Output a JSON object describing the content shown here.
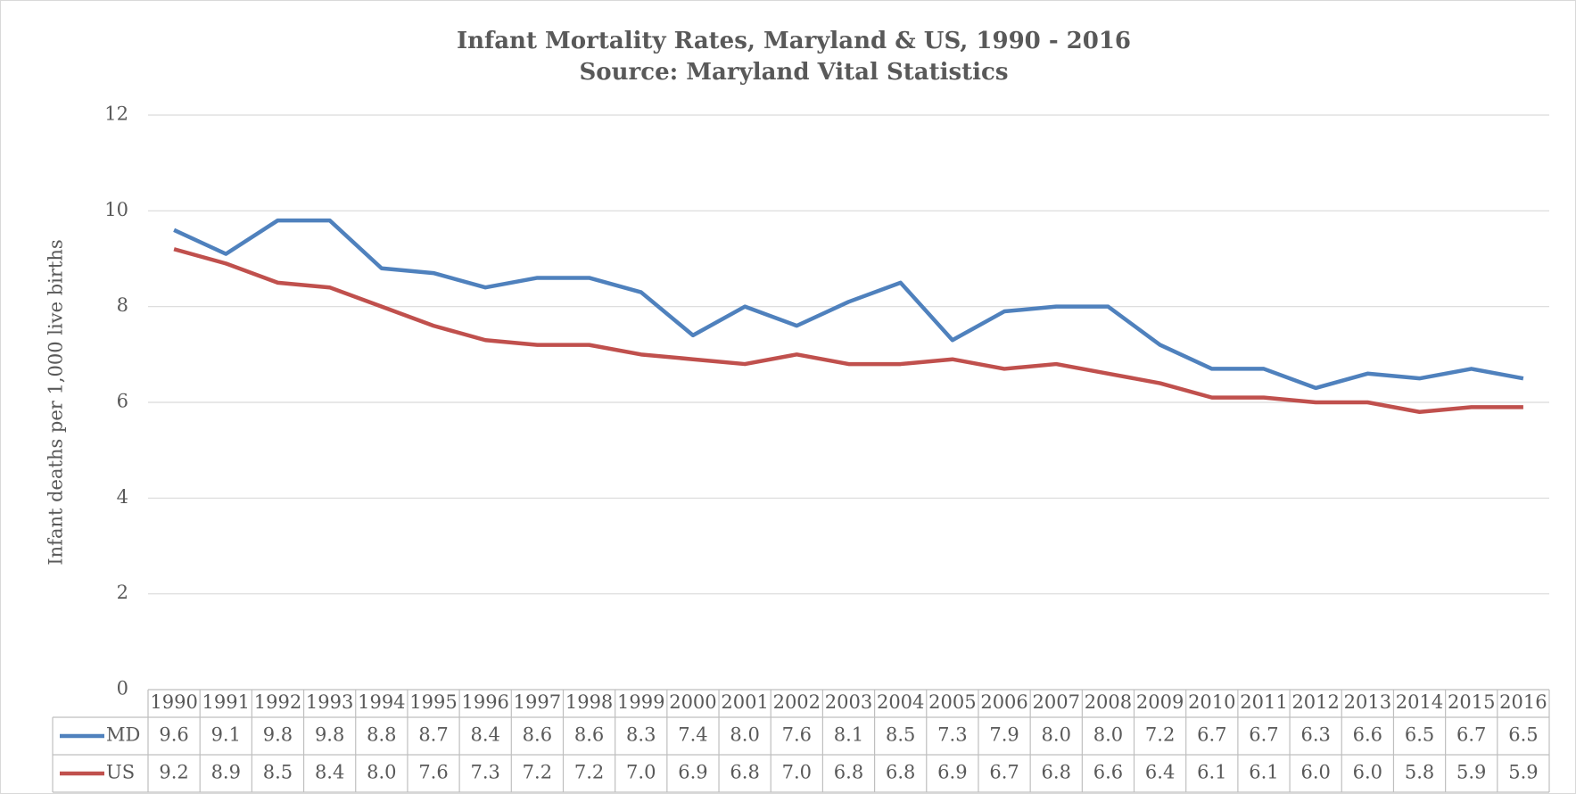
{
  "chart_data": {
    "type": "line",
    "title": "Infant Mortality Rates, Maryland & US, 1990 - 2016",
    "subtitle": "Source: Maryland Vital Statistics",
    "y_label": "Infant deaths per 1,000 live births",
    "categories": [
      "1990",
      "1991",
      "1992",
      "1993",
      "1994",
      "1995",
      "1996",
      "1997",
      "1998",
      "1999",
      "2000",
      "2001",
      "2002",
      "2003",
      "2004",
      "2005",
      "2006",
      "2007",
      "2008",
      "2009",
      "2010",
      "2011",
      "2012",
      "2013",
      "2014",
      "2015",
      "2016"
    ],
    "series": [
      {
        "name": "MD",
        "color": "#4f81bd",
        "values": [
          9.6,
          9.1,
          9.8,
          9.8,
          8.8,
          8.7,
          8.4,
          8.6,
          8.6,
          8.3,
          7.4,
          8.0,
          7.6,
          8.1,
          8.5,
          7.3,
          7.9,
          8.0,
          8.0,
          7.2,
          6.7,
          6.7,
          6.3,
          6.6,
          6.5,
          6.7,
          6.5
        ],
        "value_labels": [
          "9.6",
          "9.1",
          "9.8",
          "9.8",
          "8.8",
          "8.7",
          "8.4",
          "8.6",
          "8.6",
          "8.3",
          "7.4",
          "8.0",
          "7.6",
          "8.1",
          "8.5",
          "7.3",
          "7.9",
          "8.0",
          "8.0",
          "7.2",
          "6.7",
          "6.7",
          "6.3",
          "6.6",
          "6.5",
          "6.7",
          "6.5"
        ]
      },
      {
        "name": "US",
        "color": "#c0504d",
        "values": [
          9.2,
          8.9,
          8.5,
          8.4,
          8.0,
          7.6,
          7.3,
          7.2,
          7.2,
          7.0,
          6.9,
          6.8,
          7.0,
          6.8,
          6.8,
          6.9,
          6.7,
          6.8,
          6.6,
          6.4,
          6.1,
          6.1,
          6.0,
          6.0,
          5.8,
          5.9,
          5.9
        ],
        "value_labels": [
          "9.2",
          "8.9",
          "8.5",
          "8.4",
          "8.0",
          "7.6",
          "7.3",
          "7.2",
          "7.2",
          "7.0",
          "6.9",
          "6.8",
          "7.0",
          "6.8",
          "6.8",
          "6.9",
          "6.7",
          "6.8",
          "6.6",
          "6.4",
          "6.1",
          "6.1",
          "6.0",
          "6.0",
          "5.8",
          "5.9",
          "5.9"
        ]
      }
    ],
    "ylim": [
      0,
      12
    ],
    "yticks": [
      0,
      2,
      4,
      6,
      8,
      10,
      12
    ],
    "grid": true
  }
}
